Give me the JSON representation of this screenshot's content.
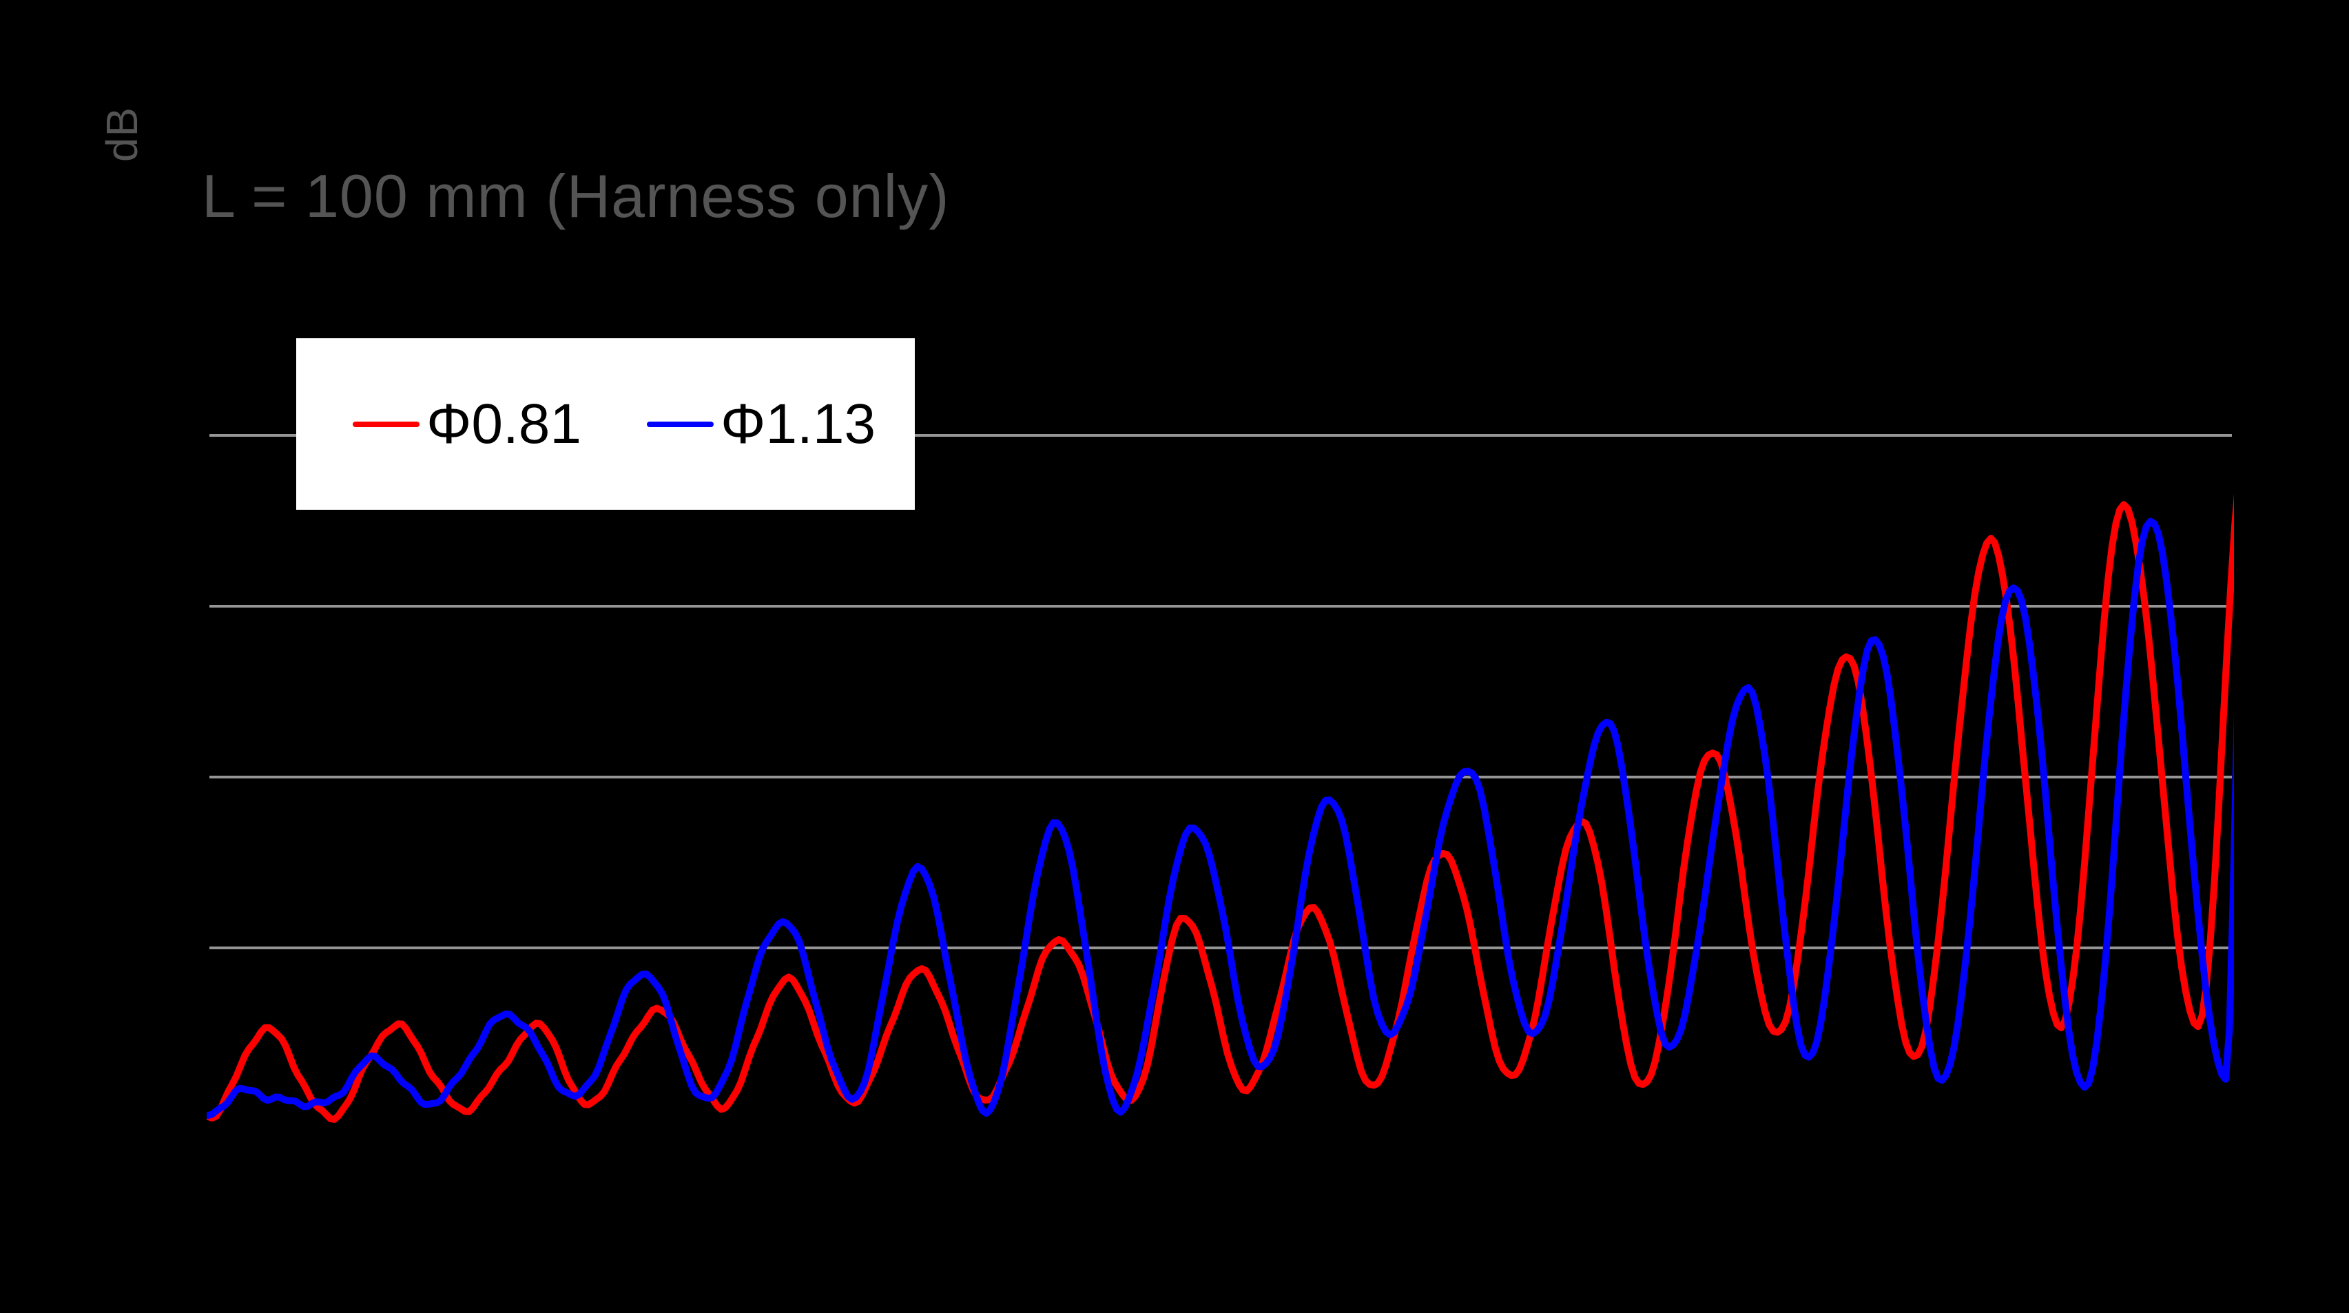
{
  "canvas": {
    "background": "#000000"
  },
  "title": {
    "text": "L = 100 mm (Harness only)",
    "color": "#545454"
  },
  "y_axis": {
    "label": "dB",
    "label_color": "#545454"
  },
  "legend": {
    "background": "#ffffff",
    "text_color": "#000000",
    "items": [
      {
        "label": "Φ0.81",
        "color": "#ff0000"
      },
      {
        "label": "Φ1.13",
        "color": "#0000ff"
      }
    ]
  },
  "chart_data": {
    "type": "line",
    "title": "L = 100 mm (Harness only)",
    "xlabel": "",
    "ylabel": "dB",
    "axes_note": "No axis tick labels are visible in the figure. x is normalized 0-1 across the plotted span; y is in gridline-spacing units (1 unit = one gridline gap), with y=0 at the lowest gridline and negative values below it. Points are the digitized peak/valley extrema of each resonance comb; the trace oscillates smoothly between consecutive points.",
    "grid": "horizontal gridlines only",
    "gridline_color": "#959595",
    "gridlines_y_units": [
      0,
      1,
      2,
      3
    ],
    "ylim_units": [
      -1.35,
      3.0
    ],
    "legend_position": "upper-left inside plot, white box",
    "background": "#000000",
    "series": [
      {
        "name": "Φ0.81",
        "color": "#ff0000",
        "points": [
          [
            0.0,
            -0.976
          ],
          [
            0.0282,
            -0.492
          ],
          [
            0.0605,
            -0.972
          ],
          [
            0.0938,
            -0.464
          ],
          [
            0.1268,
            -0.956
          ],
          [
            0.1639,
            -0.44
          ],
          [
            0.1857,
            -0.927
          ],
          [
            0.2214,
            -0.371
          ],
          [
            0.2533,
            -0.911
          ],
          [
            0.2866,
            -0.206
          ],
          [
            0.319,
            -0.891
          ],
          [
            0.3523,
            -0.121
          ],
          [
            0.3835,
            -0.903
          ],
          [
            0.4199,
            0.044
          ],
          [
            0.4556,
            -0.883
          ],
          [
            0.4821,
            0.161
          ],
          [
            0.5128,
            -0.815
          ],
          [
            0.5457,
            0.234
          ],
          [
            0.5753,
            -0.815
          ],
          [
            0.6096,
            0.569
          ],
          [
            0.6433,
            -0.754
          ],
          [
            0.678,
            0.734
          ],
          [
            0.7083,
            -0.802
          ],
          [
            0.7426,
            1.157
          ],
          [
            0.7746,
            -0.52
          ],
          [
            0.8086,
            1.726
          ],
          [
            0.8419,
            -0.641
          ],
          [
            0.88,
            2.371
          ],
          [
            0.9147,
            -0.456
          ],
          [
            0.9456,
            2.597
          ],
          [
            0.9823,
            -0.472
          ],
          [
            1.0065,
            3.008
          ]
        ]
      },
      {
        "name": "Φ1.13",
        "color": "#0000ff",
        "points": [
          [
            0.0,
            -0.976
          ],
          [
            0.0214,
            -0.831
          ],
          [
            0.0333,
            -0.871
          ],
          [
            0.0571,
            -0.931
          ],
          [
            0.0826,
            -0.629
          ],
          [
            0.1088,
            -0.927
          ],
          [
            0.1469,
            -0.395
          ],
          [
            0.1812,
            -0.851
          ],
          [
            0.2162,
            -0.157
          ],
          [
            0.2468,
            -0.895
          ],
          [
            0.2836,
            0.169
          ],
          [
            0.3179,
            -0.883
          ],
          [
            0.3502,
            0.452
          ],
          [
            0.3842,
            -0.935
          ],
          [
            0.4192,
            0.722
          ],
          [
            0.4505,
            -0.956
          ],
          [
            0.4866,
            0.718
          ],
          [
            0.5202,
            -0.702
          ],
          [
            0.5535,
            0.863
          ],
          [
            0.5835,
            -0.496
          ],
          [
            0.6219,
            1.052
          ],
          [
            0.6538,
            -0.52
          ],
          [
            0.6902,
            1.323
          ],
          [
            0.7212,
            -0.569
          ],
          [
            0.7603,
            1.508
          ],
          [
            0.7902,
            -0.637
          ],
          [
            0.8229,
            1.815
          ],
          [
            0.8559,
            -0.79
          ],
          [
            0.8912,
            2.121
          ],
          [
            0.9262,
            -0.815
          ],
          [
            0.9588,
            2.5
          ],
          [
            0.9959,
            -0.766
          ],
          [
            1.0051,
            2.323
          ]
        ]
      }
    ]
  }
}
